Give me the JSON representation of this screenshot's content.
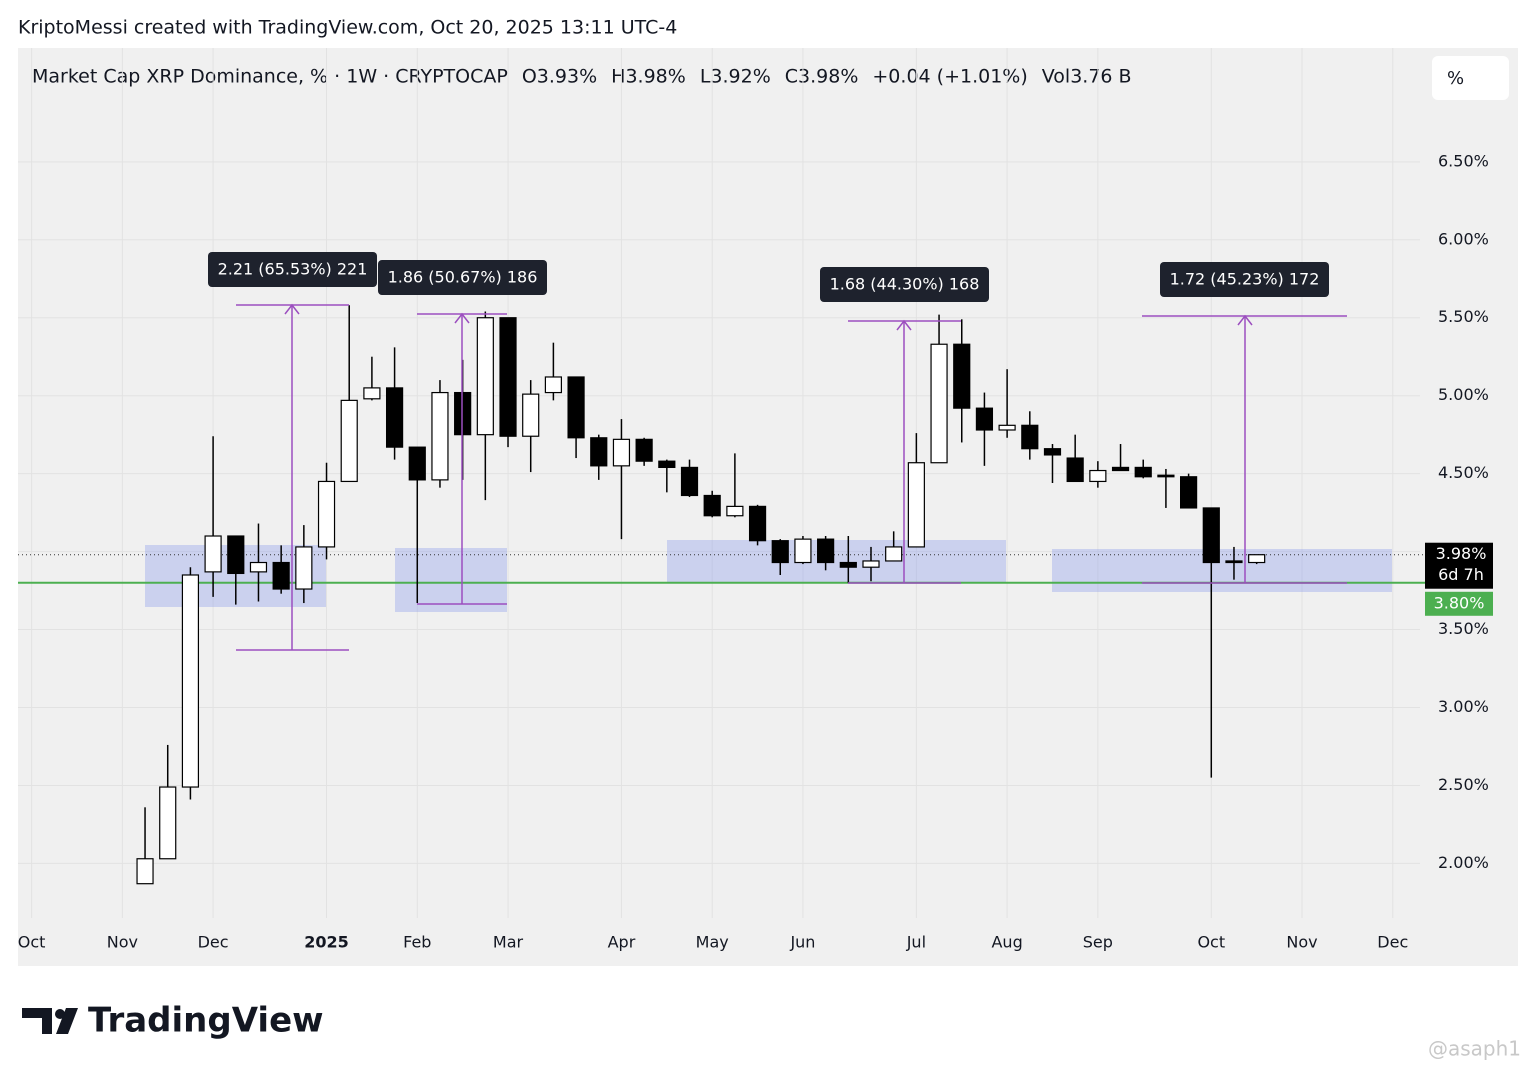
{
  "chart_data": {
    "type": "candlestick",
    "credit": "KriptoMessi created with TradingView.com, Oct 20, 2025 13:11 UTC-4",
    "title": "Market Cap XRP Dominance, % · 1W · CRYPTOCAP",
    "legend_values": [
      "O3.93%",
      "H3.98%",
      "L3.92%",
      "C3.98%",
      "+0.04 (+1.01%)",
      "Vol3.76 B"
    ],
    "scale_button": "%",
    "brand": "TradingView",
    "watermark": "@asaph1",
    "categories": [
      null,
      null,
      null,
      null,
      null,
      null,
      null,
      null,
      null,
      null,
      null,
      null,
      null,
      null,
      null,
      null,
      null,
      null,
      null,
      null,
      null,
      null,
      null,
      null,
      null,
      null,
      null,
      null,
      null,
      null,
      null,
      null,
      null,
      null,
      null,
      null,
      null,
      null,
      null,
      null,
      null,
      null,
      null,
      null,
      null,
      null,
      null,
      null,
      null,
      null
    ],
    "open": [
      1.87,
      2.03,
      2.49,
      3.87,
      4.1,
      3.87,
      3.93,
      3.76,
      4.03,
      4.45,
      4.98,
      5.05,
      4.67,
      4.46,
      5.02,
      4.75,
      5.5,
      4.74,
      5.02,
      5.12,
      4.73,
      4.55,
      4.72,
      4.58,
      4.54,
      4.36,
      4.23,
      4.29,
      4.07,
      3.93,
      4.08,
      3.93,
      3.9,
      3.94,
      4.03,
      4.57,
      5.33,
      4.92,
      4.78,
      4.81,
      4.66,
      4.6,
      4.45,
      4.54,
      4.54,
      4.49,
      4.48,
      4.28,
      3.94,
      3.93
    ],
    "high": [
      2.36,
      2.76,
      3.9,
      4.74,
      4.1,
      4.18,
      4.04,
      4.17,
      4.57,
      5.58,
      5.25,
      5.31,
      4.67,
      5.1,
      5.23,
      5.54,
      5.5,
      5.1,
      5.34,
      5.12,
      4.75,
      4.85,
      4.73,
      4.59,
      4.59,
      4.39,
      4.63,
      4.3,
      4.08,
      4.1,
      4.1,
      4.1,
      4.03,
      4.13,
      4.76,
      5.52,
      5.49,
      5.02,
      5.17,
      4.9,
      4.69,
      4.75,
      4.58,
      4.69,
      4.59,
      4.53,
      4.5,
      4.28,
      4.03,
      3.98
    ],
    "low": [
      1.87,
      2.03,
      2.41,
      3.71,
      3.66,
      3.68,
      3.73,
      3.67,
      3.95,
      4.45,
      4.97,
      4.59,
      3.67,
      4.41,
      4.46,
      4.33,
      4.67,
      4.51,
      4.97,
      4.6,
      4.46,
      4.08,
      4.55,
      4.38,
      4.35,
      4.22,
      4.22,
      4.04,
      3.85,
      3.92,
      3.88,
      3.8,
      3.81,
      3.94,
      4.03,
      4.57,
      4.7,
      4.55,
      4.73,
      4.59,
      4.44,
      4.45,
      4.41,
      4.52,
      4.47,
      4.28,
      4.28,
      2.55,
      3.82,
      3.92
    ],
    "close": [
      2.03,
      2.49,
      3.85,
      4.1,
      3.86,
      3.93,
      3.76,
      4.03,
      4.45,
      4.97,
      5.05,
      4.67,
      4.46,
      5.02,
      4.75,
      5.5,
      4.74,
      5.01,
      5.12,
      4.73,
      4.55,
      4.72,
      4.58,
      4.54,
      4.36,
      4.23,
      4.29,
      4.07,
      3.93,
      4.08,
      3.93,
      3.9,
      3.94,
      4.03,
      4.57,
      5.33,
      4.92,
      4.78,
      4.81,
      4.66,
      4.62,
      4.45,
      4.52,
      4.52,
      4.48,
      4.48,
      4.28,
      3.93,
      3.93,
      3.98
    ],
    "up_color": "#ffffff",
    "down_color": "#000000",
    "wick_color": "#000000",
    "xlim": [
      -5.6,
      56.2
    ],
    "xticks": [
      {
        "value": -5,
        "label": "Oct"
      },
      {
        "value": -1,
        "label": "Nov"
      },
      {
        "value": 3,
        "label": "Dec"
      },
      {
        "value": 8,
        "label": "2025"
      },
      {
        "value": 12,
        "label": "Feb"
      },
      {
        "value": 16,
        "label": "Mar"
      },
      {
        "value": 21,
        "label": "Apr"
      },
      {
        "value": 25,
        "label": "May"
      },
      {
        "value": 29,
        "label": "Jun"
      },
      {
        "value": 34,
        "label": "Jul"
      },
      {
        "value": 38,
        "label": "Aug"
      },
      {
        "value": 42,
        "label": "Sep"
      },
      {
        "value": 47,
        "label": "Oct"
      },
      {
        "value": 51,
        "label": "Nov"
      },
      {
        "value": 55,
        "label": "Dec"
      }
    ],
    "ylim": [
      1.65,
      7.23
    ],
    "yticks": [
      {
        "value": 2,
        "label": "2.00%"
      },
      {
        "value": 2.5,
        "label": "2.50%"
      },
      {
        "value": 3,
        "label": "3.00%"
      },
      {
        "value": 3.5,
        "label": "3.50%"
      },
      {
        "value": 4,
        "label": "4.00%"
      },
      {
        "value": 4.5,
        "label": "4.50%"
      },
      {
        "value": 5,
        "label": "5.00%"
      },
      {
        "value": 5.5,
        "label": "5.50%"
      },
      {
        "value": 6,
        "label": "6.00%"
      },
      {
        "value": 6.5,
        "label": "6.50%"
      }
    ],
    "grid": true,
    "last_price": {
      "value": 3.98,
      "label": "3.98%"
    },
    "countdown": "6d 7h",
    "horizontal_line": {
      "value": 3.8,
      "label": "3.80%",
      "color": "#4caf50"
    },
    "annotations": [
      "2.21 (65.53%) 221",
      "1.86 (50.67%) 186",
      "1.68 (44.30%) 168",
      "1.72 (45.23%) 172"
    ]
  }
}
